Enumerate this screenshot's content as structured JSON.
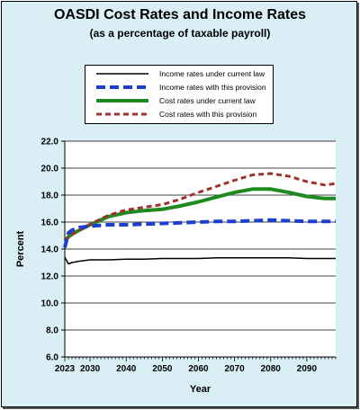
{
  "chart_data": {
    "type": "line",
    "title": "OASDI Cost Rates and Income Rates",
    "subtitle": "(as a percentage of taxable payroll)",
    "xlabel": "Year",
    "ylabel": "Percent",
    "xlim": [
      2023,
      2098
    ],
    "ylim": [
      6.0,
      22.0
    ],
    "x_ticks": [
      "2023",
      "2030",
      "2040",
      "2050",
      "2060",
      "2070",
      "2080",
      "2090"
    ],
    "y_ticks": [
      "6.0",
      "8.0",
      "10.0",
      "12.0",
      "14.0",
      "16.0",
      "18.0",
      "20.0",
      "22.0"
    ],
    "grid": true,
    "legend_position": "top-center",
    "x": [
      2023,
      2024,
      2025,
      2027,
      2030,
      2035,
      2040,
      2045,
      2050,
      2055,
      2060,
      2065,
      2070,
      2075,
      2080,
      2085,
      2090,
      2095,
      2098
    ],
    "series": [
      {
        "name": "Income rates under current law",
        "color": "#000000",
        "style": "solid",
        "values": [
          13.4,
          12.9,
          13.0,
          13.1,
          13.2,
          13.2,
          13.25,
          13.25,
          13.3,
          13.3,
          13.3,
          13.35,
          13.35,
          13.35,
          13.35,
          13.35,
          13.3,
          13.3,
          13.3
        ]
      },
      {
        "name": "Income rates with this provision",
        "color": "#1a3fd0",
        "style": "dashed",
        "values": [
          14.1,
          15.2,
          15.4,
          15.6,
          15.7,
          15.8,
          15.8,
          15.85,
          15.9,
          15.95,
          16.0,
          16.05,
          16.05,
          16.1,
          16.15,
          16.1,
          16.05,
          16.05,
          16.05
        ]
      },
      {
        "name": "Cost rates under current law",
        "color": "#1f8a1f",
        "style": "solid",
        "values": [
          14.6,
          14.9,
          15.1,
          15.4,
          15.8,
          16.4,
          16.7,
          16.85,
          16.95,
          17.2,
          17.5,
          17.85,
          18.2,
          18.45,
          18.45,
          18.2,
          17.9,
          17.75,
          17.75
        ]
      },
      {
        "name": "Cost rates with this provision",
        "color": "#a0302a",
        "style": "dashed",
        "values": [
          14.6,
          14.9,
          15.1,
          15.4,
          15.85,
          16.5,
          16.9,
          17.1,
          17.3,
          17.7,
          18.2,
          18.65,
          19.1,
          19.5,
          19.6,
          19.4,
          19.0,
          18.75,
          18.85
        ]
      }
    ]
  }
}
